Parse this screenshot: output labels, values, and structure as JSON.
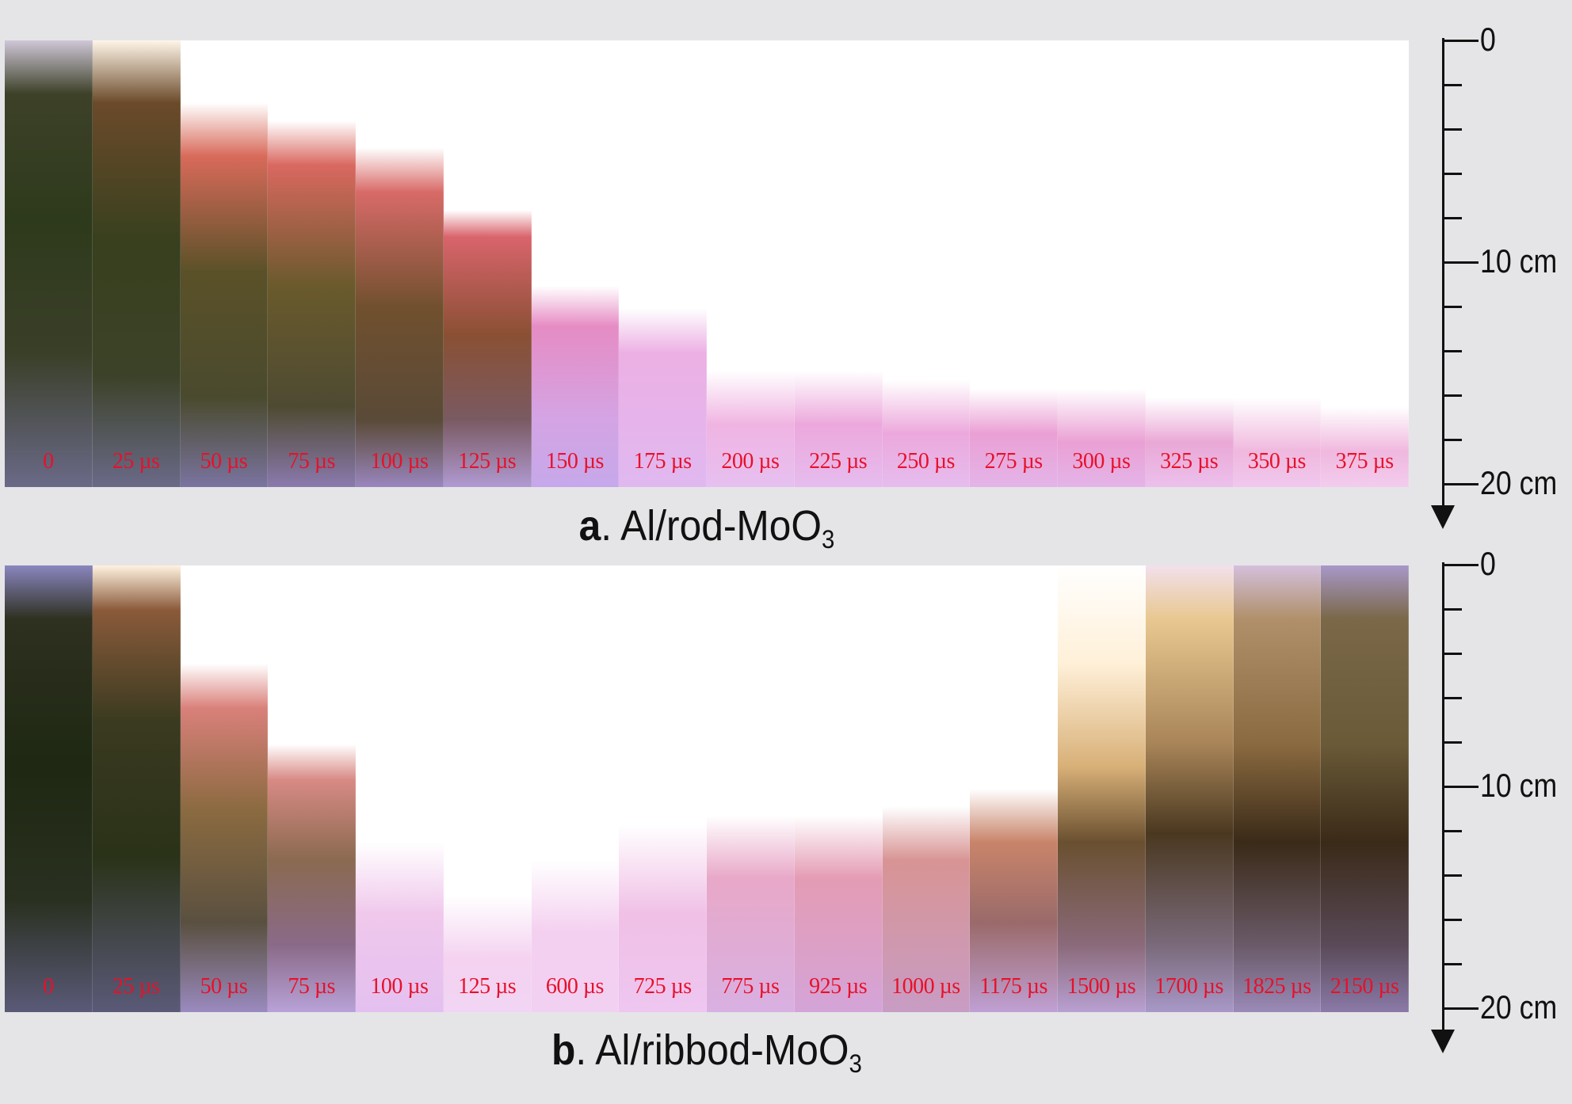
{
  "panel_a": {
    "caption_letter": "a",
    "caption_text": ". Al/rod-MoO",
    "caption_sub": "3",
    "frames": [
      "0",
      "25 µs",
      "50 µs",
      "75 µs",
      "100 µs",
      "125 µs",
      "150 µs",
      "175 µs",
      "200 µs",
      "225 µs",
      "250 µs",
      "275 µs",
      "300 µs",
      "325 µs",
      "350 µs",
      "375 µs"
    ]
  },
  "panel_b": {
    "caption_letter": "b",
    "caption_text": ". Al/ribbod-MoO",
    "caption_sub": "3",
    "frames": [
      "0",
      "25 µs",
      "50 µs",
      "75 µs",
      "100 µs",
      "125 µs",
      "600 µs",
      "725 µs",
      "775 µs",
      "925 µs",
      "1000 µs",
      "1175 µs",
      "1500 µs",
      "1700 µs",
      "1825 µs",
      "2150 µs"
    ]
  },
  "scale": {
    "label_top": "0",
    "label_mid": "10 cm",
    "label_bottom": "20 cm"
  }
}
